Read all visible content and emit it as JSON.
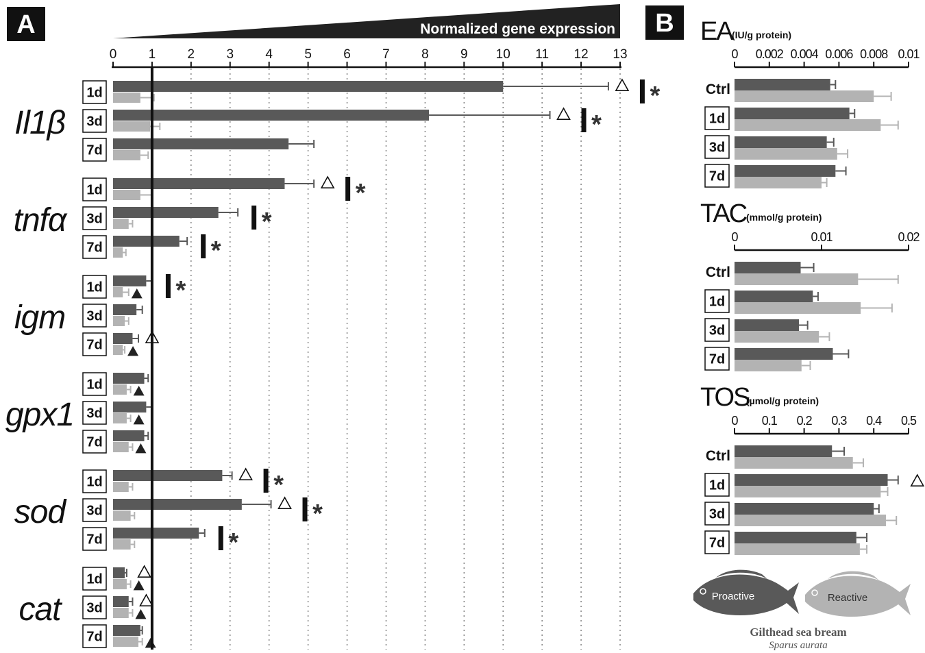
{
  "panel_labels": {
    "a": "A",
    "b": "B"
  },
  "colors": {
    "proactive": "#595959",
    "reactive": "#b3b3b3",
    "ink": "#111111"
  },
  "chart_data": [
    {
      "type": "bar",
      "panel": "A",
      "title": "Normalized gene expression",
      "orientation": "horizontal",
      "xlim": [
        0,
        13
      ],
      "xticks": [
        "0",
        "1",
        "2",
        "3",
        "4",
        "5",
        "6",
        "7",
        "8",
        "9",
        "10",
        "11",
        "12",
        "13"
      ],
      "reference_line": 1,
      "series_names": [
        "Proactive",
        "Reactive"
      ],
      "genes": [
        {
          "name": "Il1β",
          "rows": [
            {
              "label": "1d",
              "proactive": 10.0,
              "proactive_err": 2.7,
              "reactive": 0.7,
              "reactive_err": 0.35,
              "open_triangle": true,
              "filled_triangle": false,
              "significant": true
            },
            {
              "label": "3d",
              "proactive": 8.1,
              "proactive_err": 3.1,
              "reactive": 0.95,
              "reactive_err": 0.25,
              "open_triangle": true,
              "filled_triangle": false,
              "significant": true
            },
            {
              "label": "7d",
              "proactive": 4.5,
              "proactive_err": 0.65,
              "reactive": 0.7,
              "reactive_err": 0.2,
              "open_triangle": false,
              "filled_triangle": false,
              "significant": false
            }
          ]
        },
        {
          "name": "tnfα",
          "rows": [
            {
              "label": "1d",
              "proactive": 4.4,
              "proactive_err": 0.75,
              "reactive": 0.7,
              "reactive_err": 0.3,
              "open_triangle": true,
              "filled_triangle": false,
              "significant": true
            },
            {
              "label": "3d",
              "proactive": 2.7,
              "proactive_err": 0.5,
              "reactive": 0.4,
              "reactive_err": 0.1,
              "open_triangle": false,
              "filled_triangle": false,
              "significant": true
            },
            {
              "label": "7d",
              "proactive": 1.7,
              "proactive_err": 0.2,
              "reactive": 0.25,
              "reactive_err": 0.08,
              "open_triangle": false,
              "filled_triangle": false,
              "significant": true
            }
          ]
        },
        {
          "name": "igm",
          "rows": [
            {
              "label": "1d",
              "proactive": 0.85,
              "proactive_err": 0.15,
              "reactive": 0.25,
              "reactive_err": 0.15,
              "open_triangle": false,
              "filled_triangle": true,
              "significant": true
            },
            {
              "label": "3d",
              "proactive": 0.6,
              "proactive_err": 0.15,
              "reactive": 0.3,
              "reactive_err": 0.1,
              "open_triangle": false,
              "filled_triangle": false,
              "significant": false
            },
            {
              "label": "7d",
              "proactive": 0.5,
              "proactive_err": 0.15,
              "reactive": 0.25,
              "reactive_err": 0.05,
              "open_triangle": true,
              "filled_triangle": true,
              "significant": false
            }
          ]
        },
        {
          "name": "gpx1",
          "rows": [
            {
              "label": "1d",
              "proactive": 0.8,
              "proactive_err": 0.1,
              "reactive": 0.35,
              "reactive_err": 0.1,
              "open_triangle": false,
              "filled_triangle": true,
              "significant": false
            },
            {
              "label": "3d",
              "proactive": 0.85,
              "proactive_err": 0.15,
              "reactive": 0.35,
              "reactive_err": 0.1,
              "open_triangle": false,
              "filled_triangle": true,
              "significant": false
            },
            {
              "label": "7d",
              "proactive": 0.8,
              "proactive_err": 0.1,
              "reactive": 0.4,
              "reactive_err": 0.1,
              "open_triangle": false,
              "filled_triangle": true,
              "significant": false
            }
          ]
        },
        {
          "name": "sod",
          "rows": [
            {
              "label": "1d",
              "proactive": 2.8,
              "proactive_err": 0.25,
              "reactive": 0.4,
              "reactive_err": 0.1,
              "open_triangle": true,
              "filled_triangle": false,
              "significant": true
            },
            {
              "label": "3d",
              "proactive": 3.3,
              "proactive_err": 0.75,
              "reactive": 0.45,
              "reactive_err": 0.1,
              "open_triangle": true,
              "filled_triangle": false,
              "significant": true
            },
            {
              "label": "7d",
              "proactive": 2.2,
              "proactive_err": 0.15,
              "reactive": 0.45,
              "reactive_err": 0.1,
              "open_triangle": false,
              "filled_triangle": false,
              "significant": true
            }
          ]
        },
        {
          "name": "cat",
          "rows": [
            {
              "label": "1d",
              "proactive": 0.3,
              "proactive_err": 0.05,
              "reactive": 0.35,
              "reactive_err": 0.1,
              "open_triangle": true,
              "filled_triangle": true,
              "significant": false
            },
            {
              "label": "3d",
              "proactive": 0.4,
              "proactive_err": 0.1,
              "reactive": 0.4,
              "reactive_err": 0.1,
              "open_triangle": true,
              "filled_triangle": true,
              "significant": false
            },
            {
              "label": "7d",
              "proactive": 0.7,
              "proactive_err": 0.05,
              "reactive": 0.65,
              "reactive_err": 0.1,
              "open_triangle": false,
              "filled_triangle": true,
              "significant": false
            }
          ]
        }
      ]
    },
    {
      "type": "bar",
      "panel": "B",
      "title": "EA",
      "unit": "(IU/g protein)",
      "orientation": "horizontal",
      "xlim": [
        0,
        0.01
      ],
      "xticks": [
        "0",
        "0.002",
        "0.004",
        "0.006",
        "0.008",
        "0.01"
      ],
      "rows": [
        {
          "label": "Ctrl",
          "proactive": 0.0055,
          "proactive_err": 0.0003,
          "reactive": 0.008,
          "reactive_err": 0.001,
          "open_triangle": false
        },
        {
          "label": "1d",
          "proactive": 0.0066,
          "proactive_err": 0.0003,
          "reactive": 0.0084,
          "reactive_err": 0.001,
          "open_triangle": false
        },
        {
          "label": "3d",
          "proactive": 0.0053,
          "proactive_err": 0.0004,
          "reactive": 0.0059,
          "reactive_err": 0.0006,
          "open_triangle": false
        },
        {
          "label": "7d",
          "proactive": 0.0058,
          "proactive_err": 0.0006,
          "reactive": 0.005,
          "reactive_err": 0.0003,
          "open_triangle": false
        }
      ]
    },
    {
      "type": "bar",
      "panel": "B",
      "title": "TAC",
      "unit": "(mmol/g protein)",
      "orientation": "horizontal",
      "xlim": [
        0,
        0.02
      ],
      "xticks": [
        "0",
        "0.01",
        "0.02"
      ],
      "rows": [
        {
          "label": "Ctrl",
          "proactive": 0.0076,
          "proactive_err": 0.0015,
          "reactive": 0.0142,
          "reactive_err": 0.0046,
          "open_triangle": false
        },
        {
          "label": "1d",
          "proactive": 0.009,
          "proactive_err": 0.0006,
          "reactive": 0.0145,
          "reactive_err": 0.0036,
          "open_triangle": false
        },
        {
          "label": "3d",
          "proactive": 0.0074,
          "proactive_err": 0.001,
          "reactive": 0.0097,
          "reactive_err": 0.0012,
          "open_triangle": false
        },
        {
          "label": "7d",
          "proactive": 0.0113,
          "proactive_err": 0.0018,
          "reactive": 0.0077,
          "reactive_err": 0.001,
          "open_triangle": false
        }
      ]
    },
    {
      "type": "bar",
      "panel": "B",
      "title": "TOS",
      "unit": "(µmol/g protein)",
      "orientation": "horizontal",
      "xlim": [
        0,
        0.5
      ],
      "xticks": [
        "0",
        "0.1",
        "0.2",
        "0.3",
        "0.4",
        "0.5"
      ],
      "rows": [
        {
          "label": "Ctrl",
          "proactive": 0.28,
          "proactive_err": 0.035,
          "reactive": 0.34,
          "reactive_err": 0.03,
          "open_triangle": false
        },
        {
          "label": "1d",
          "proactive": 0.44,
          "proactive_err": 0.03,
          "reactive": 0.42,
          "reactive_err": 0.02,
          "open_triangle": true
        },
        {
          "label": "3d",
          "proactive": 0.4,
          "proactive_err": 0.015,
          "reactive": 0.435,
          "reactive_err": 0.03,
          "open_triangle": false
        },
        {
          "label": "7d",
          "proactive": 0.35,
          "proactive_err": 0.03,
          "reactive": 0.36,
          "reactive_err": 0.02,
          "open_triangle": false
        }
      ]
    }
  ],
  "legend": {
    "proactive": "Proactive",
    "reactive": "Reactive",
    "species_common": "Gilthead sea bream",
    "species_latin": "Sparus aurata"
  }
}
